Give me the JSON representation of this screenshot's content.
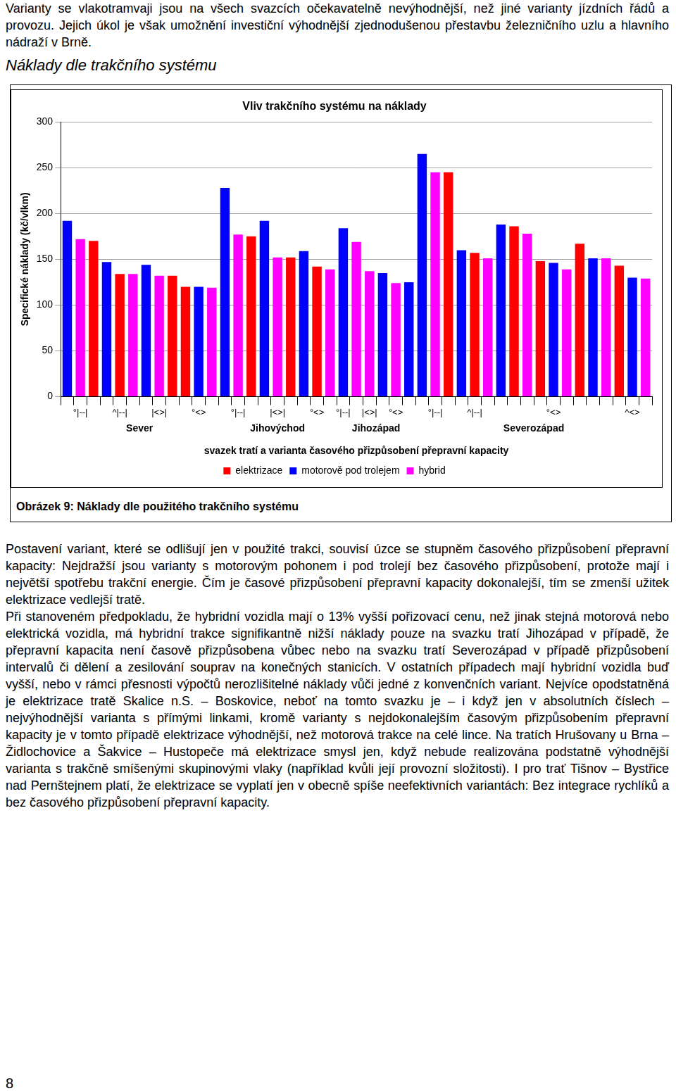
{
  "intro_text": "Varianty se vlakotramvaji jsou na všech svazcích očekavatelně nevýhodnější, než jiné varianty jízdních řádů a provozu. Jejich úkol je však umožnění investiční výhodnější zjednodušenou přestavbu železničního uzlu a hlavního nádraží v Brně.",
  "heading": "Náklady dle trakčního systému",
  "chart_data": {
    "type": "bar",
    "title": "Vliv trakčního systému na náklady",
    "y_label": "Specifické náklady (kč/vlkm)",
    "x_label": "svazek tratí a varianta časového přizpůsobení přepravní kapacity",
    "categories": [
      null,
      "°|--|",
      null,
      null,
      "^|--|",
      null,
      null,
      "|<>|",
      null,
      null,
      "°<>",
      null,
      null,
      "°|--|",
      null,
      null,
      "|<>|",
      null,
      null,
      "°<>",
      null,
      "°|--|",
      null,
      "|<>|",
      null,
      "°<>",
      null,
      null,
      "°|--|",
      null,
      null,
      "^|--|",
      null,
      null,
      null,
      null,
      null,
      "°<>",
      null,
      null,
      null,
      null,
      null,
      "^<>",
      null
    ],
    "groups": [
      {
        "label": "Sever",
        "first": 0,
        "last": 11
      },
      {
        "label": "Jihovýchod",
        "first": 12,
        "last": 20
      },
      {
        "label": "Jihozápad",
        "first": 21,
        "last": 26
      },
      {
        "label": "Severozápad",
        "first": 27,
        "last": 44
      }
    ],
    "series": [
      {
        "name": "elektrizace",
        "color": "#ff0000",
        "values": [
          null,
          null,
          170,
          null,
          134,
          null,
          null,
          null,
          132,
          120,
          null,
          null,
          null,
          null,
          175,
          null,
          null,
          152,
          null,
          142,
          null,
          null,
          null,
          null,
          null,
          null,
          null,
          null,
          null,
          245,
          null,
          157,
          null,
          null,
          186,
          null,
          148,
          null,
          null,
          167,
          null,
          null,
          143,
          null,
          null
        ]
      },
      {
        "name": "motorově pod trolejem",
        "color": "#0000ff",
        "values": [
          192,
          null,
          null,
          147,
          null,
          null,
          144,
          null,
          null,
          null,
          120,
          null,
          228,
          null,
          null,
          192,
          null,
          null,
          159,
          null,
          null,
          184,
          null,
          null,
          135,
          null,
          125,
          265,
          null,
          null,
          160,
          null,
          null,
          188,
          null,
          null,
          null,
          146,
          null,
          null,
          151,
          null,
          null,
          130,
          null
        ]
      },
      {
        "name": "hybrid",
        "color": "#ff00ff",
        "values": [
          null,
          172,
          null,
          null,
          null,
          134,
          null,
          132,
          null,
          null,
          null,
          119,
          null,
          177,
          null,
          null,
          152,
          null,
          null,
          null,
          139,
          null,
          169,
          137,
          null,
          124,
          null,
          null,
          245,
          null,
          null,
          null,
          151,
          null,
          null,
          178,
          null,
          null,
          139,
          null,
          null,
          151,
          null,
          null,
          129
        ]
      }
    ],
    "ylim": [
      0,
      300
    ],
    "yticks": [
      0,
      50,
      100,
      150,
      200,
      250,
      300
    ],
    "grid": true,
    "legend": "bottom"
  },
  "caption": "Obrázek 9: Náklady dle použitého trakčního systému",
  "paragraphs": [
    "Postavení variant, které se odlišují jen v použité trakci, souvisí úzce se stupněm časového přizpůsobení přepravní kapacity: Nejdražší jsou varianty s motorovým pohonem i pod trolejí bez časového přizpůsobení, protože mají i největší spotřebu trakční energie. Čím je časové přizpůsobení přepravní kapacity dokonalejší, tím se zmenší užitek elektrizace vedlejší tratě.",
    "Při stanoveném předpokladu, že hybridní vozidla mají o 13% vyšší pořizovací cenu, než jinak stejná motorová nebo elektrická vozidla, má hybridní trakce signifikantně nižší náklady pouze na svazku tratí Jihozápad v případě, že přepravní kapacita není časově přizpůsobena vůbec nebo na svazku tratí Severozápad v případě přizpůsobení intervalů či dělení a zesilování souprav na konečných stanicích. V ostatních případech mají hybridní vozidla buď vyšší, nebo v rámci přesnosti výpočtů nerozlišitelné náklady vůči jedné z konvenčních variant. Nejvíce opodstatněná je elektrizace tratě Skalice n.S. – Boskovice, neboť na tomto svazku je – i když jen v absolutních číslech – nejvýhodnější varianta s přímými linkami, kromě varianty s nejdokonalejším časovým přizpůsobením přepravní kapacity je v tomto případě elektrizace výhodnější, než motorová trakce na celé lince. Na tratích Hrušovany u Brna – Židlochovice a Šakvice – Hustopeče má elektrizace smysl jen, když nebude realizována podstatně výhodnější varianta s trakčně smíšenými skupinovými vlaky (například kvůli její provozní složitosti). I pro trať Tišnov – Bystřice nad Pernštejnem platí, že elektrizace se vyplatí jen v obecně spíše neefektivních variantách: Bez integrace rychlíků a bez časového přizpůsobení přepravní kapacity."
  ],
  "page_number": 8
}
